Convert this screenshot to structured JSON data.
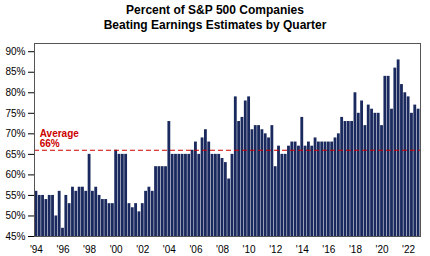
{
  "chart_data": {
    "type": "bar",
    "title": "Percent of S&P 500 Companies",
    "subtitle": "Beating Earnings Estimates by Quarter",
    "color": "#1b2a5e",
    "categories": [
      "'94",
      null,
      null,
      null,
      null,
      null,
      null,
      null,
      "'96",
      null,
      null,
      null,
      null,
      null,
      null,
      null,
      "'98",
      null,
      null,
      null,
      null,
      null,
      null,
      null,
      "'00",
      null,
      null,
      null,
      null,
      null,
      null,
      null,
      "'02",
      null,
      null,
      null,
      null,
      null,
      null,
      null,
      "'04",
      null,
      null,
      null,
      null,
      null,
      null,
      null,
      "'06",
      null,
      null,
      null,
      null,
      null,
      null,
      null,
      "'08",
      null,
      null,
      null,
      null,
      null,
      null,
      null,
      "'10",
      null,
      null,
      null,
      null,
      null,
      null,
      null,
      "'12",
      null,
      null,
      null,
      null,
      null,
      null,
      null,
      "'14",
      null,
      null,
      null,
      null,
      null,
      null,
      null,
      "'16",
      null,
      null,
      null,
      null,
      null,
      null,
      null,
      "'18",
      null,
      null,
      null,
      null,
      null,
      null,
      null,
      "'20",
      null,
      null,
      null,
      null,
      null,
      null,
      null,
      "'22",
      null,
      null,
      null
    ],
    "values": [
      56,
      55,
      55,
      54,
      55,
      55,
      50,
      56,
      47,
      55,
      53,
      57,
      56,
      57,
      57,
      56,
      65,
      56,
      57,
      55,
      54,
      54,
      53,
      53,
      66,
      65,
      65,
      65,
      53,
      52,
      53,
      51,
      53,
      56,
      57,
      56,
      62,
      62,
      62,
      62,
      73,
      65,
      65,
      65,
      65,
      65,
      65,
      66,
      68,
      65,
      69,
      71,
      68,
      65,
      65,
      65,
      64,
      63,
      59,
      65,
      79,
      73,
      74,
      78,
      79,
      71,
      72,
      72,
      71,
      70,
      69,
      72,
      62,
      67,
      65,
      65,
      67,
      68,
      68,
      67,
      74,
      67,
      68,
      67,
      69,
      68,
      68,
      68,
      68,
      68,
      69,
      70,
      74,
      73,
      73,
      73,
      80,
      75,
      78,
      72,
      77,
      76,
      75,
      75,
      72,
      84,
      84,
      76,
      86,
      88,
      82,
      80,
      79,
      75,
      77,
      76
    ],
    "ylim": [
      45,
      92
    ],
    "yticks": [
      {
        "value": 45,
        "label": "45%"
      },
      {
        "value": 50,
        "label": "50%"
      },
      {
        "value": 55,
        "label": "55%"
      },
      {
        "value": 60,
        "label": "60%"
      },
      {
        "value": 65,
        "label": "65%"
      },
      {
        "value": 70,
        "label": "70%"
      },
      {
        "value": 75,
        "label": "75%"
      },
      {
        "value": 80,
        "label": "80%"
      },
      {
        "value": 85,
        "label": "85%"
      },
      {
        "value": 90,
        "label": "90%"
      }
    ],
    "average_line": {
      "value": 66,
      "color": "#cc0000",
      "label": [
        "Average",
        "66%"
      ]
    }
  }
}
